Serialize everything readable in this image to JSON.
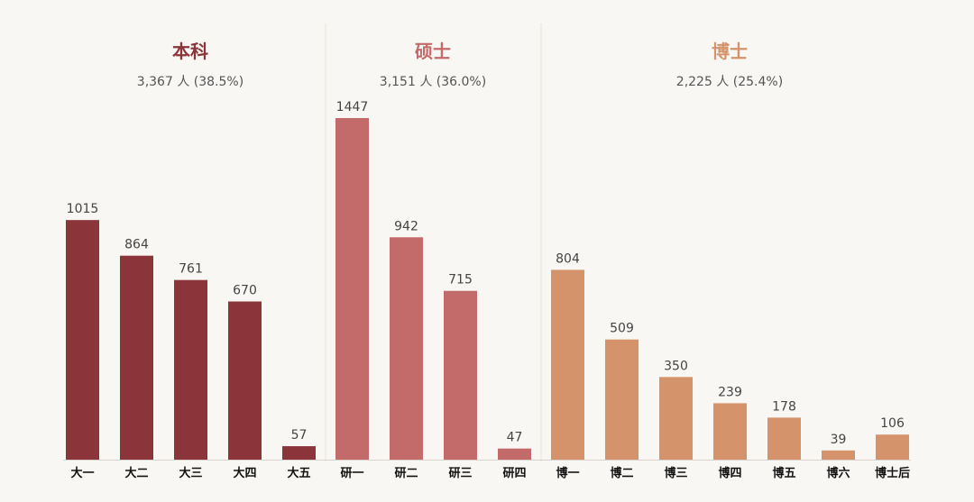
{
  "chart_data": {
    "type": "bar",
    "groups": [
      {
        "name": "本科",
        "subtitle": "3,367 人 (38.5%)",
        "color": "#8b353b",
        "categories": [
          "大一",
          "大二",
          "大三",
          "大四",
          "大五"
        ],
        "values": [
          1015,
          864,
          761,
          670,
          57
        ]
      },
      {
        "name": "硕士",
        "subtitle": "3,151 人 (36.0%)",
        "color": "#c36b6a",
        "categories": [
          "研一",
          "研二",
          "研三",
          "研四"
        ],
        "values": [
          1447,
          942,
          715,
          47
        ]
      },
      {
        "name": "博士",
        "subtitle": "2,225 人 (25.4%)",
        "color": "#d4936a",
        "categories": [
          "博一",
          "博二",
          "博三",
          "博四",
          "博五",
          "博六",
          "博士后"
        ],
        "values": [
          804,
          509,
          350,
          239,
          178,
          39,
          106
        ]
      }
    ],
    "ylim": [
      0,
      1447
    ],
    "grid": false,
    "xlabel": "",
    "ylabel": ""
  }
}
